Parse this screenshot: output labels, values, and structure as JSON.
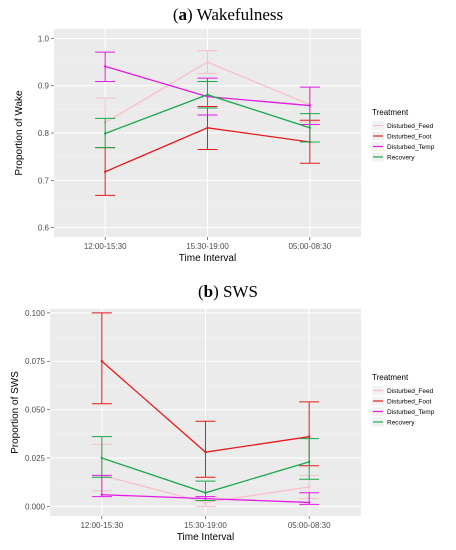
{
  "chart_data": [
    {
      "type": "line",
      "title_letter": "a",
      "title_text": " Wakefulness",
      "xlabel": "Time Interval",
      "ylabel": "Proportion of Wake",
      "categories": [
        "12:00-15:30",
        "15:30-19:00",
        "05:00-08:30"
      ],
      "ylim": [
        0.58,
        1.02
      ],
      "yticks": [
        0.6,
        0.7,
        0.8,
        0.9,
        1.0
      ],
      "ytick_labels": [
        "0.6",
        "0.7",
        "0.8",
        "0.9",
        "1.0"
      ],
      "grid": true,
      "legend": {
        "title": "Treatment",
        "position": "right"
      },
      "series": [
        {
          "name": "Disturbed_Feed",
          "color": "#f8bfc8",
          "values": [
            0.822,
            0.95,
            0.86
          ],
          "err_low": [
            0.769,
            0.926,
            0.823
          ],
          "err_high": [
            0.874,
            0.974,
            0.897
          ]
        },
        {
          "name": "Disturbed_Foot",
          "color": "#e41a1c",
          "values": [
            0.718,
            0.811,
            0.781
          ],
          "err_low": [
            0.668,
            0.765,
            0.736
          ],
          "err_high": [
            0.769,
            0.856,
            0.827
          ]
        },
        {
          "name": "Disturbed_Temp",
          "color": "#e31ae8",
          "values": [
            0.941,
            0.877,
            0.858
          ],
          "err_low": [
            0.909,
            0.838,
            0.818
          ],
          "err_high": [
            0.971,
            0.916,
            0.897
          ]
        },
        {
          "name": "Recovery",
          "color": "#1aa84a",
          "values": [
            0.799,
            0.881,
            0.811
          ],
          "err_low": [
            0.769,
            0.853,
            0.781
          ],
          "err_high": [
            0.831,
            0.909,
            0.841
          ]
        }
      ]
    },
    {
      "type": "line",
      "title_letter": "b",
      "title_text": " SWS",
      "xlabel": "Time Interval",
      "ylabel": "Proportion of SWS",
      "categories": [
        "12:00-15:30",
        "15:30-19:00",
        "05:00-08:30"
      ],
      "ylim": [
        -0.005,
        0.102
      ],
      "yticks": [
        0.0,
        0.025,
        0.05,
        0.075,
        0.1
      ],
      "ytick_labels": [
        "0.000",
        "0.025",
        "0.050",
        "0.075",
        "0.100"
      ],
      "grid": true,
      "legend": {
        "title": "Treatment",
        "position": "right"
      },
      "series": [
        {
          "name": "Disturbed_Feed",
          "color": "#f8bfc8",
          "values": [
            0.016,
            0.002,
            0.01
          ],
          "err_low": [
            0.008,
            0.0,
            0.004
          ],
          "err_high": [
            0.032,
            0.005,
            0.016
          ]
        },
        {
          "name": "Disturbed_Foot",
          "color": "#e41a1c",
          "values": [
            0.075,
            0.028,
            0.036
          ],
          "err_low": [
            0.053,
            0.015,
            0.021
          ],
          "err_high": [
            0.1,
            0.044,
            0.054
          ]
        },
        {
          "name": "Disturbed_Temp",
          "color": "#e31ae8",
          "values": [
            0.006,
            0.004,
            0.002
          ],
          "err_low": [
            0.005,
            0.003,
            0.001
          ],
          "err_high": [
            0.016,
            0.005,
            0.007
          ]
        },
        {
          "name": "Recovery",
          "color": "#1aa84a",
          "values": [
            0.025,
            0.007,
            0.023
          ],
          "err_low": [
            0.015,
            0.003,
            0.014
          ],
          "err_high": [
            0.036,
            0.013,
            0.035
          ]
        }
      ]
    }
  ]
}
